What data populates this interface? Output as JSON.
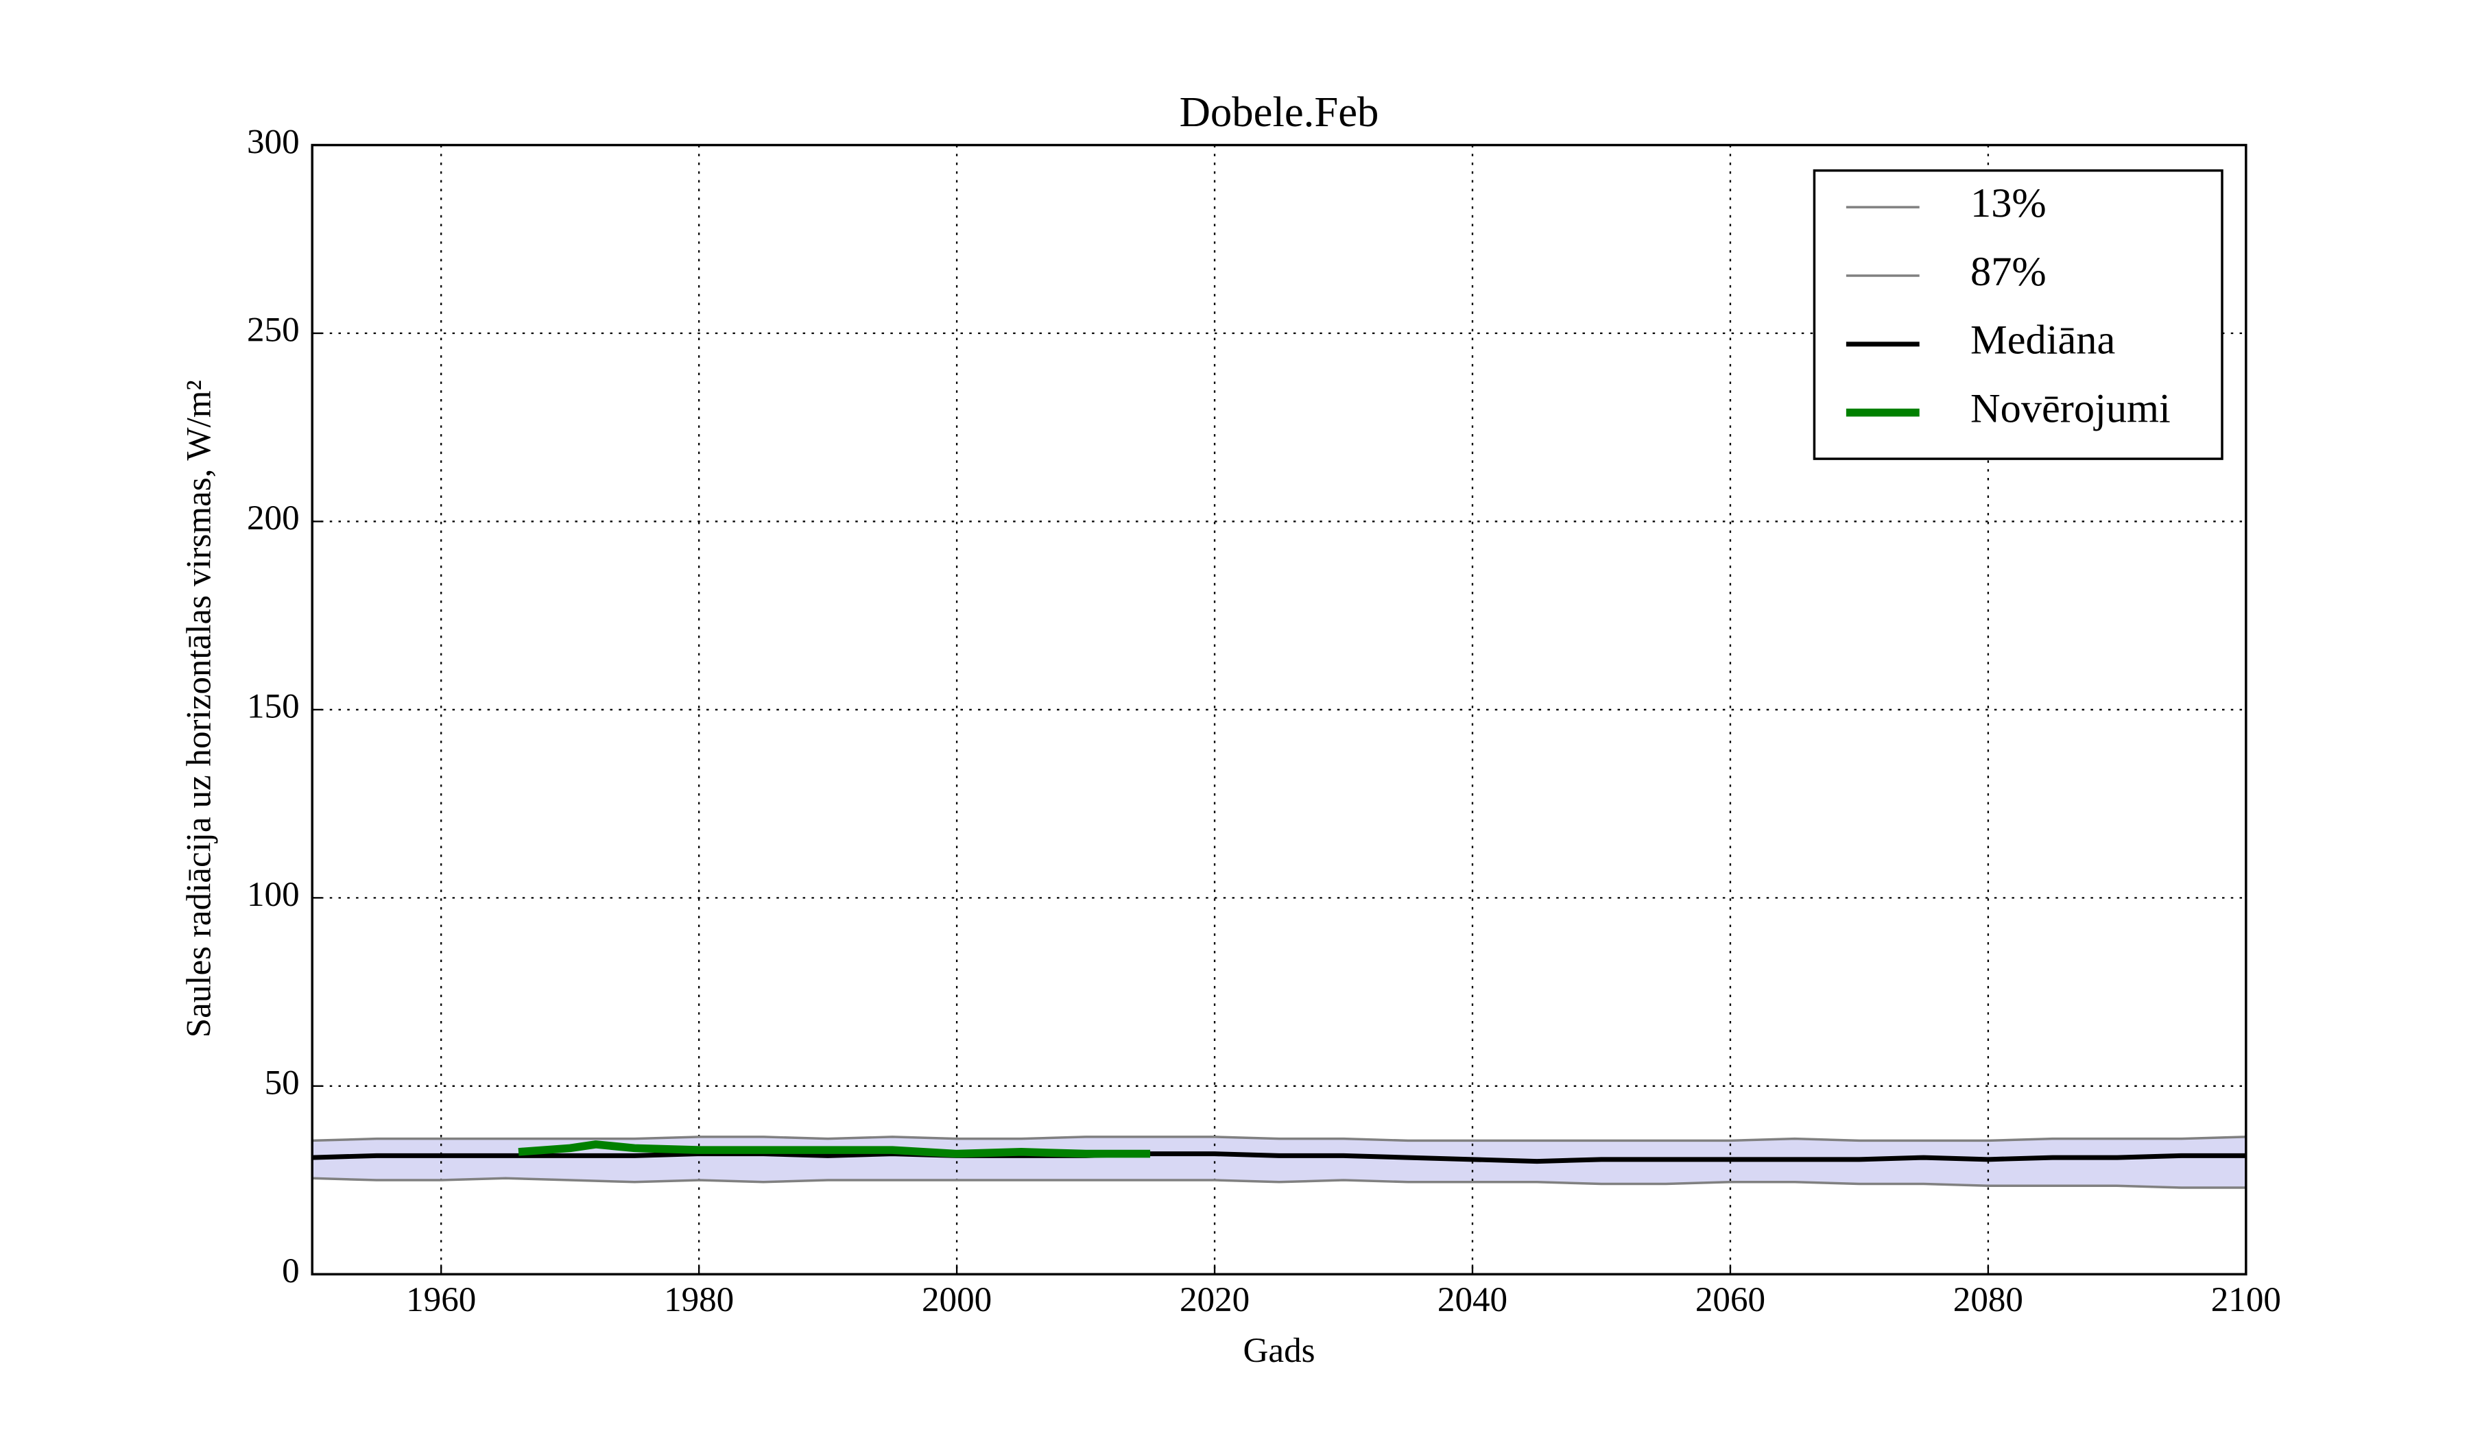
{
  "chart_data": {
    "type": "line",
    "title": "Dobele.Feb",
    "xlabel": "Gads",
    "ylabel": "Saules radiācija uz horizontālas virsmas, W/m²",
    "xlim": [
      1950,
      2100
    ],
    "xticks": [
      1960,
      1980,
      2000,
      2020,
      2040,
      2060,
      2080,
      2100
    ],
    "ylim": [
      0,
      300
    ],
    "yticks": [
      0,
      50,
      100,
      150,
      200,
      250,
      300
    ],
    "grid": true,
    "legend": "upper right",
    "band_color": "#d8d8f4",
    "series": [
      {
        "name": "13%",
        "color": "#808080",
        "width": 1.5,
        "x": [
          1950,
          1955,
          1960,
          1965,
          1970,
          1975,
          1980,
          1985,
          1990,
          1995,
          2000,
          2005,
          2010,
          2015,
          2020,
          2025,
          2030,
          2035,
          2040,
          2045,
          2050,
          2055,
          2060,
          2065,
          2070,
          2075,
          2080,
          2085,
          2090,
          2095,
          2100
        ],
        "values": [
          25.5,
          25,
          25,
          25.5,
          25,
          24.5,
          25,
          24.5,
          25,
          25,
          25,
          25,
          25,
          25,
          25,
          24.5,
          25,
          24.5,
          24.5,
          24.5,
          24,
          24,
          24.5,
          24.5,
          24,
          24,
          23.5,
          23.5,
          23.5,
          23,
          23
        ]
      },
      {
        "name": "87%",
        "color": "#808080",
        "width": 1.5,
        "x": [
          1950,
          1955,
          1960,
          1965,
          1970,
          1975,
          1980,
          1985,
          1990,
          1995,
          2000,
          2005,
          2010,
          2015,
          2020,
          2025,
          2030,
          2035,
          2040,
          2045,
          2050,
          2055,
          2060,
          2065,
          2070,
          2075,
          2080,
          2085,
          2090,
          2095,
          2100
        ],
        "values": [
          35.5,
          36,
          36,
          36,
          36,
          36,
          36.5,
          36.5,
          36,
          36.5,
          36,
          36,
          36.5,
          36.5,
          36.5,
          36,
          36,
          35.5,
          35.5,
          35.5,
          35.5,
          35.5,
          35.5,
          36,
          35.5,
          35.5,
          35.5,
          36,
          36,
          36,
          36.5
        ]
      },
      {
        "name": "Mediāna",
        "color": "#000000",
        "width": 3,
        "x": [
          1950,
          1955,
          1960,
          1965,
          1970,
          1975,
          1980,
          1985,
          1990,
          1995,
          2000,
          2005,
          2010,
          2015,
          2020,
          2025,
          2030,
          2035,
          2040,
          2045,
          2050,
          2055,
          2060,
          2065,
          2070,
          2075,
          2080,
          2085,
          2090,
          2095,
          2100
        ],
        "values": [
          31,
          31.5,
          31.5,
          31.5,
          31.5,
          31.5,
          32,
          32,
          31.5,
          32,
          31.5,
          31.5,
          31.5,
          32,
          32,
          31.5,
          31.5,
          31,
          30.5,
          30,
          30.5,
          30.5,
          30.5,
          30.5,
          30.5,
          31,
          30.5,
          31,
          31,
          31.5,
          31.5
        ]
      },
      {
        "name": "Novērojumi",
        "color": "#008000",
        "width": 5,
        "x": [
          1966,
          1970,
          1972,
          1975,
          1980,
          1985,
          1990,
          1995,
          2000,
          2005,
          2010,
          2015
        ],
        "values": [
          32.5,
          33.5,
          34.5,
          33.5,
          33,
          33,
          33,
          33,
          32,
          32.5,
          32,
          32
        ]
      }
    ]
  }
}
